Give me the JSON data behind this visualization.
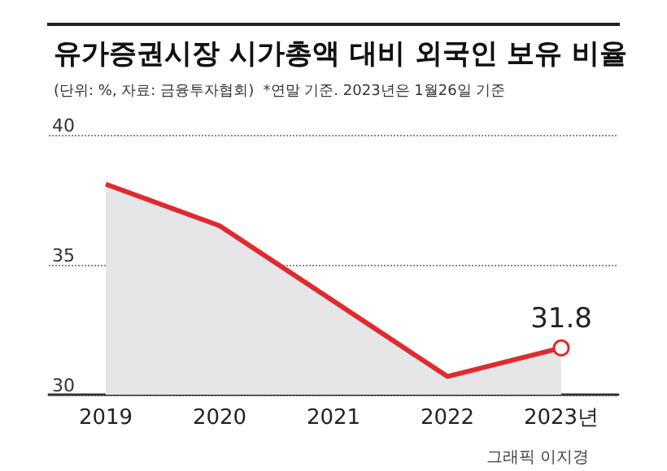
{
  "chart_data": {
    "type": "area",
    "title": "유가증권시장 시가총액 대비 외국인 보유 비율",
    "subtitle": "(단위: %, 자료: 금융투자협회)  *연말 기준. 2023년은 1월26일 기준",
    "categories": [
      "2019",
      "2020",
      "2021",
      "2022",
      "2023년"
    ],
    "series": [
      {
        "color": "#e02a2e",
        "values": [
          38.1,
          36.5,
          33.6,
          30.7,
          31.8
        ],
        "value_labels": [
          null,
          null,
          null,
          null,
          "31.8"
        ]
      }
    ],
    "ylim": [
      30,
      40
    ],
    "yticks": [
      30,
      35,
      40
    ],
    "grid": "y",
    "annotations": [
      "그래픽 이지경"
    ]
  }
}
